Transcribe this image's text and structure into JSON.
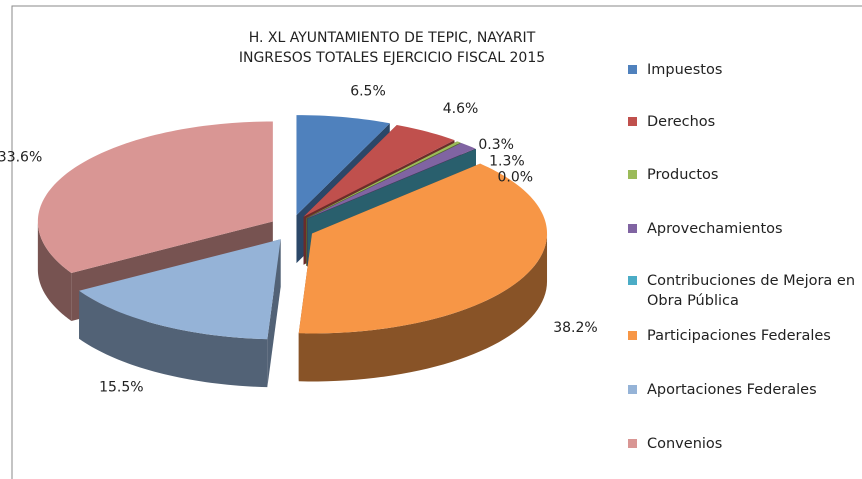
{
  "chart_data": {
    "type": "pie3d",
    "title": [
      "H. XL AYUNTAMIENTO DE TEPIC, NAYARIT",
      "INGRESOS TOTALES EJERCICIO  FISCAL 2015"
    ],
    "categories": [
      "Impuestos",
      "Derechos",
      "Productos",
      "Aprovechamientos",
      "Contribuciones de Mejora en Obra Pública",
      "Participaciones Federales",
      "Aportaciones Federales",
      "Convenios"
    ],
    "values": [
      6.5,
      4.6,
      0.3,
      1.3,
      0.0,
      38.2,
      15.5,
      33.6
    ],
    "value_labels": [
      "6.5%",
      "4.6%",
      "0.3%",
      "1.3%",
      "0.0%",
      "38.2%",
      "15.5%",
      "33.6%"
    ],
    "colors": [
      "#4f81bd",
      "#c0504d",
      "#9bbb59",
      "#8064a2",
      "#4bacc6",
      "#f79646",
      "#95b3d7",
      "#d99694"
    ],
    "legend": "right"
  }
}
